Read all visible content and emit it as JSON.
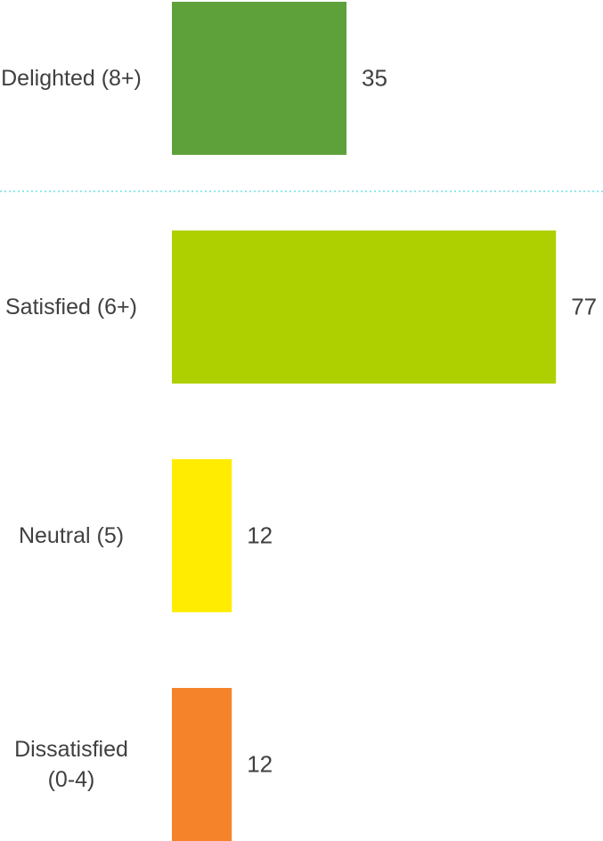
{
  "chart_data": {
    "type": "bar",
    "orientation": "horizontal",
    "categories": [
      "Delighted (8+)",
      "Satisfied (6+)",
      "Neutral (5)",
      "Dissatisfied (0-4)"
    ],
    "values": [
      35,
      77,
      12,
      12
    ],
    "colors": [
      "#5ea13b",
      "#afd000",
      "#ffec00",
      "#f5832a"
    ]
  }
}
